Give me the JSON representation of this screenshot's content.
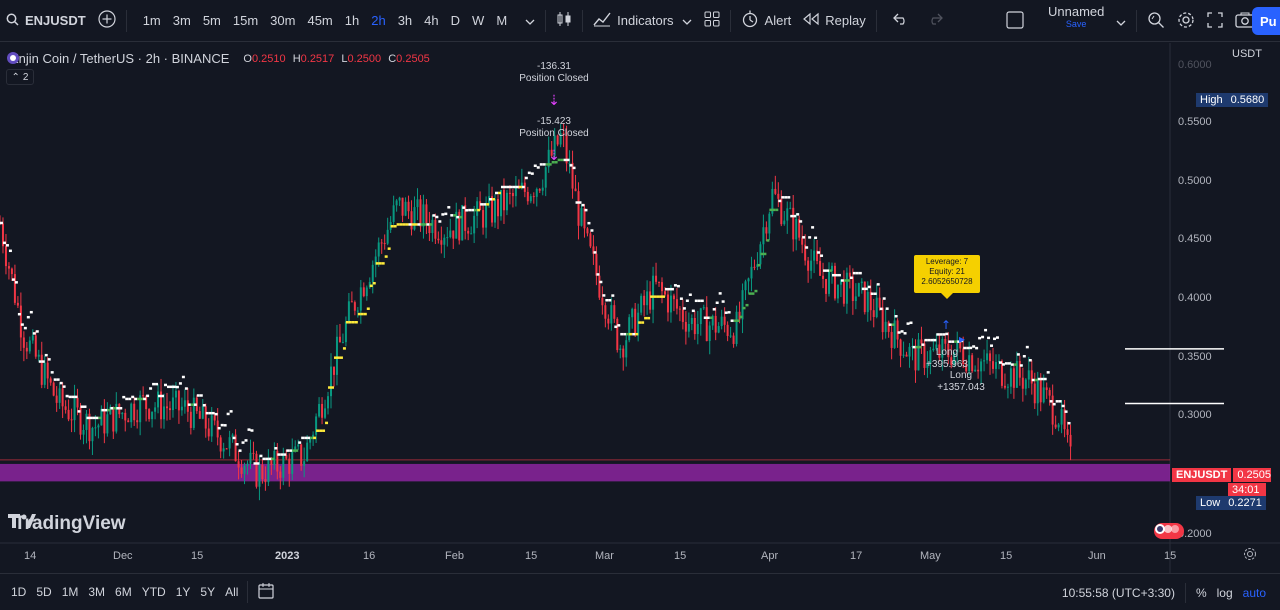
{
  "toolbar": {
    "symbol": "ENJUSDT",
    "timeframes": [
      "1m",
      "3m",
      "5m",
      "15m",
      "30m",
      "45m",
      "1h",
      "2h",
      "3h",
      "4h",
      "D",
      "W",
      "M"
    ],
    "active_timeframe": "2h",
    "indicators_label": "Indicators",
    "alert_label": "Alert",
    "replay_label": "Replay",
    "layout_name": "Unnamed",
    "layout_sub": "Save",
    "publish_label": "Pu"
  },
  "legend": {
    "title": "Enjin Coin / TetherUS · 2h · BINANCE",
    "o_label": "O",
    "o_value": "0.2510",
    "h_label": "H",
    "h_value": "0.2517",
    "l_label": "L",
    "l_value": "0.2500",
    "c_label": "C",
    "c_value": "0.2505",
    "collapse_count": "2"
  },
  "price_axis": {
    "currency": "USDT",
    "labels": [
      "0.5500",
      "0.5000",
      "0.4500",
      "0.4000",
      "0.3500",
      "0.3000",
      "0.2000"
    ],
    "top_label": "0.6000",
    "high_label": "High",
    "high_value": "0.5680",
    "symbol_tag": "ENJUSDT",
    "last_price": "0.2505",
    "countdown": "34:01",
    "low_label": "Low",
    "low_value": "0.2271"
  },
  "time_axis": {
    "labels": [
      "14",
      "Dec",
      "15",
      "2023",
      "16",
      "Feb",
      "15",
      "Mar",
      "15",
      "Apr",
      "17",
      "May",
      "15",
      "Jun",
      "15"
    ]
  },
  "annotations": {
    "trade1_pnl": "-136.31",
    "trade1_label": "Position Closed",
    "trade2_pnl": "-15.423",
    "trade2_label": "Position Closed",
    "tooltip_line1": "Leverage: 7",
    "tooltip_line2": "Equity: 21",
    "tooltip_line3": "2.6052650728",
    "long1_label": "Long",
    "long1_value": "+395.963",
    "long2_label": "Long",
    "long2_value": "+1357.043"
  },
  "watermark": {
    "text": "TradingView"
  },
  "bottom": {
    "ranges": [
      "1D",
      "5D",
      "1M",
      "3M",
      "6M",
      "YTD",
      "1Y",
      "5Y",
      "All"
    ],
    "clock": "10:55:58 (UTC+3:30)",
    "percent": "%",
    "log": "log",
    "auto": "auto"
  },
  "colors": {
    "background": "#131722",
    "up": "#089981",
    "down": "#f23645",
    "accent": "#2962ff",
    "support_band": "#9c27b0",
    "trail_green": "#4caf50",
    "trail_white": "#ffffff",
    "trail_yellow": "#ffeb3b"
  },
  "chart_data": {
    "type": "line",
    "price_path": [
      [
        0,
        0.455
      ],
      [
        0.02,
        0.36
      ],
      [
        0.05,
        0.3
      ],
      [
        0.08,
        0.28
      ],
      [
        0.12,
        0.3
      ],
      [
        0.16,
        0.295
      ],
      [
        0.19,
        0.27
      ],
      [
        0.22,
        0.24
      ],
      [
        0.26,
        0.255
      ],
      [
        0.3,
        0.38
      ],
      [
        0.34,
        0.47
      ],
      [
        0.38,
        0.45
      ],
      [
        0.42,
        0.465
      ],
      [
        0.46,
        0.49
      ],
      [
        0.48,
        0.53
      ],
      [
        0.5,
        0.44
      ],
      [
        0.53,
        0.35
      ],
      [
        0.56,
        0.4
      ],
      [
        0.59,
        0.37
      ],
      [
        0.63,
        0.365
      ],
      [
        0.66,
        0.48
      ],
      [
        0.68,
        0.45
      ],
      [
        0.7,
        0.41
      ],
      [
        0.74,
        0.39
      ],
      [
        0.78,
        0.34
      ],
      [
        0.82,
        0.345
      ],
      [
        0.85,
        0.33
      ],
      [
        0.88,
        0.32
      ],
      [
        0.905,
        0.29
      ],
      [
        0.915,
        0.25
      ]
    ],
    "ylim": [
      0.18,
      0.61
    ],
    "support_band": [
      0.233,
      0.248
    ],
    "horizontal_levels": [
      0.347,
      0.3
    ]
  }
}
